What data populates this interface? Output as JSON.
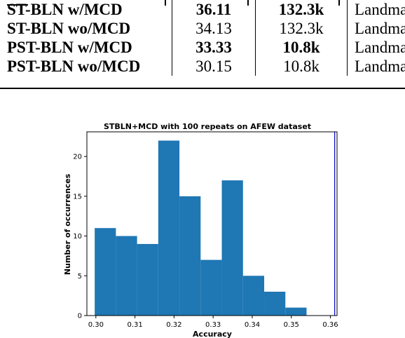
{
  "table": {
    "rows": [
      {
        "method": "ST-BLN w/MCD",
        "accuracy": "36.11",
        "params": "132.3k",
        "modality": "Landmar",
        "bold_accuracy": true,
        "bold_params": true
      },
      {
        "method": "ST-BLN wo/MCD",
        "accuracy": "34.13",
        "params": "132.3k",
        "modality": "Landmar",
        "bold_accuracy": false,
        "bold_params": false
      },
      {
        "method": "PST-BLN w/MCD",
        "accuracy": "33.33",
        "params": "10.8k",
        "modality": "Landmar",
        "bold_accuracy": true,
        "bold_params": true
      },
      {
        "method": "PST-BLN wo/MCD",
        "accuracy": "30.15",
        "params": "10.8k",
        "modality": "Landmar",
        "bold_accuracy": false,
        "bold_params": false
      }
    ]
  },
  "chart_data": {
    "type": "bar",
    "title": "STBLN+MCD with 100 repeats on AFEW dataset",
    "xlabel": "Accuracy",
    "ylabel": "Number of occurrences",
    "xlim": [
      0.2977,
      0.3617
    ],
    "ylim": [
      0,
      23.1
    ],
    "bin_width": 0.00542,
    "bins": [
      {
        "start": 0.2997,
        "count": 11
      },
      {
        "start": 0.30512,
        "count": 10
      },
      {
        "start": 0.31054,
        "count": 9
      },
      {
        "start": 0.31596,
        "count": 22
      },
      {
        "start": 0.32138,
        "count": 15
      },
      {
        "start": 0.3268,
        "count": 7
      },
      {
        "start": 0.33222,
        "count": 17
      },
      {
        "start": 0.33764,
        "count": 5
      },
      {
        "start": 0.34306,
        "count": 3
      },
      {
        "start": 0.34848,
        "count": 1
      }
    ],
    "x_ticks": [
      {
        "value": 0.3,
        "label": "0.30"
      },
      {
        "value": 0.31,
        "label": "0.31"
      },
      {
        "value": 0.32,
        "label": "0.32"
      },
      {
        "value": 0.33,
        "label": "0.33"
      },
      {
        "value": 0.34,
        "label": "0.34"
      },
      {
        "value": 0.35,
        "label": "0.35"
      },
      {
        "value": 0.36,
        "label": "0.36"
      }
    ],
    "y_ticks": [
      {
        "value": 0,
        "label": "0"
      },
      {
        "value": 5,
        "label": "5"
      },
      {
        "value": 10,
        "label": "10"
      },
      {
        "value": 15,
        "label": "15"
      },
      {
        "value": 20,
        "label": "20"
      }
    ],
    "reference_line": {
      "x": 0.3611,
      "color": "#0000cc"
    },
    "bar_color": "#1f77b4",
    "grid": false,
    "legend": "none"
  }
}
